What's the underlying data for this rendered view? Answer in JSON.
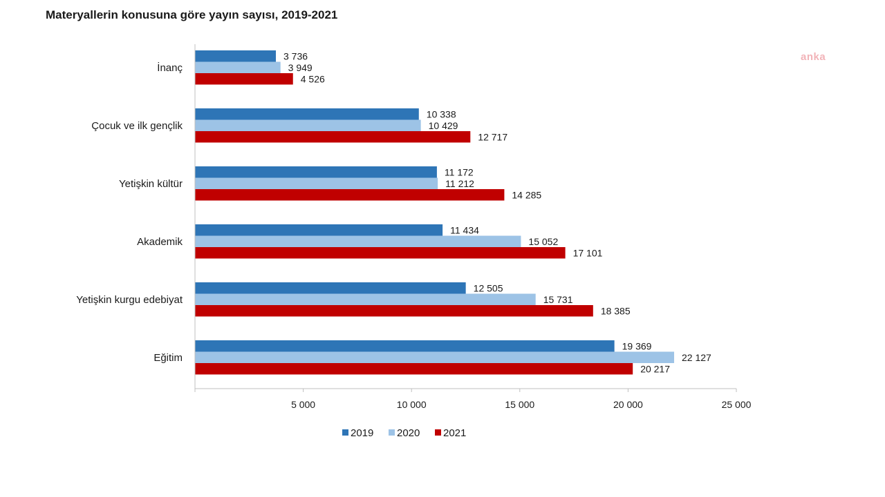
{
  "watermark": "anka",
  "chart_data": {
    "type": "bar",
    "orientation": "horizontal",
    "title": "Materyallerin konusuna göre yayın sayısı, 2019-2021",
    "categories": [
      "İnanç",
      "Çocuk ve ilk gençlik",
      "Yetişkin kültür",
      "Akademik",
      "Yetişkin kurgu edebiyat",
      "Eğitim"
    ],
    "series": [
      {
        "name": "2019",
        "color": "#2e75b6",
        "values": [
          3736,
          10338,
          11172,
          11434,
          12505,
          19369
        ],
        "labels": [
          "3 736",
          "10 338",
          "11 172",
          "11 434",
          "12 505",
          "19 369"
        ]
      },
      {
        "name": "2020",
        "color": "#9dc3e6",
        "values": [
          3949,
          10429,
          11212,
          15052,
          15731,
          22127
        ],
        "labels": [
          "3 949",
          "10 429",
          "11 212",
          "15 052",
          "15 731",
          "22 127"
        ]
      },
      {
        "name": "2021",
        "color": "#c00000",
        "values": [
          4526,
          12717,
          14285,
          17101,
          18385,
          20217
        ],
        "labels": [
          "4 526",
          "12 717",
          "14 285",
          "17 101",
          "18 385",
          "20 217"
        ]
      }
    ],
    "xlim": [
      0,
      25000
    ],
    "ticks": [
      5000,
      10000,
      15000,
      20000,
      25000
    ],
    "tick_labels": [
      "5 000",
      "10 000",
      "15 000",
      "20 000",
      "25 000"
    ],
    "xlabel": "",
    "ylabel": "",
    "grid": false,
    "legend": "bottom"
  }
}
